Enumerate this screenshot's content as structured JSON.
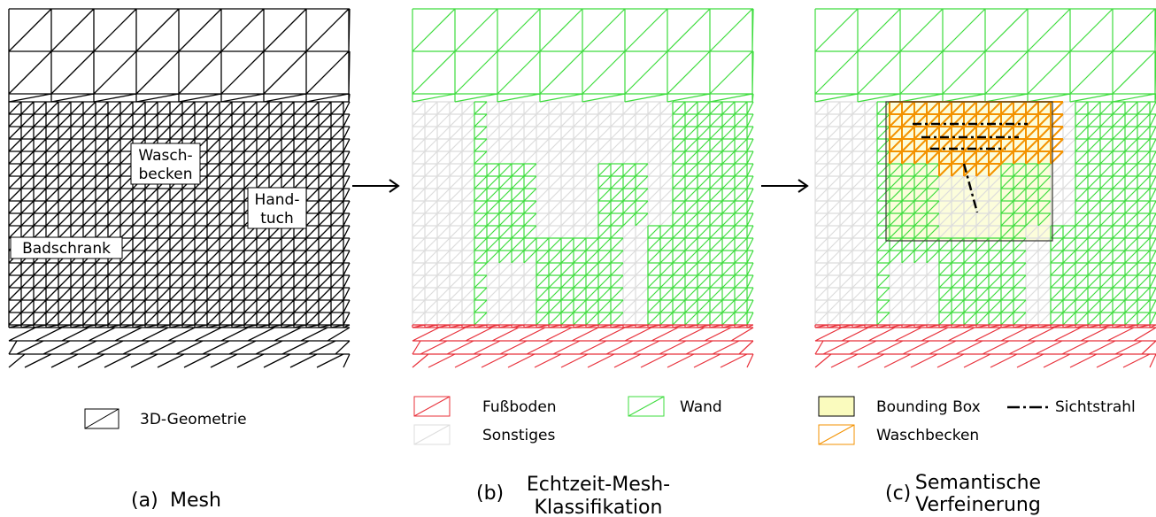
{
  "panels": [
    {
      "label": "(a)",
      "caption": [
        "Mesh"
      ],
      "annotations": [
        [
          "Wasch-",
          "becken"
        ],
        [
          "Hand-",
          "tuch"
        ],
        [
          "Badschrank"
        ]
      ],
      "legend": [
        "3D-Geometrie"
      ]
    },
    {
      "label": "(b)",
      "caption": [
        "Echtzeit-Mesh-",
        "Klassifikation"
      ],
      "legend": [
        "Fußboden",
        "Wand",
        "Sonstiges"
      ]
    },
    {
      "label": "(c)",
      "caption": [
        "Semantische",
        "Verfeinerung"
      ],
      "legend": [
        "Bounding Box",
        "Sichtstrahl",
        "Waschbecken"
      ]
    }
  ]
}
